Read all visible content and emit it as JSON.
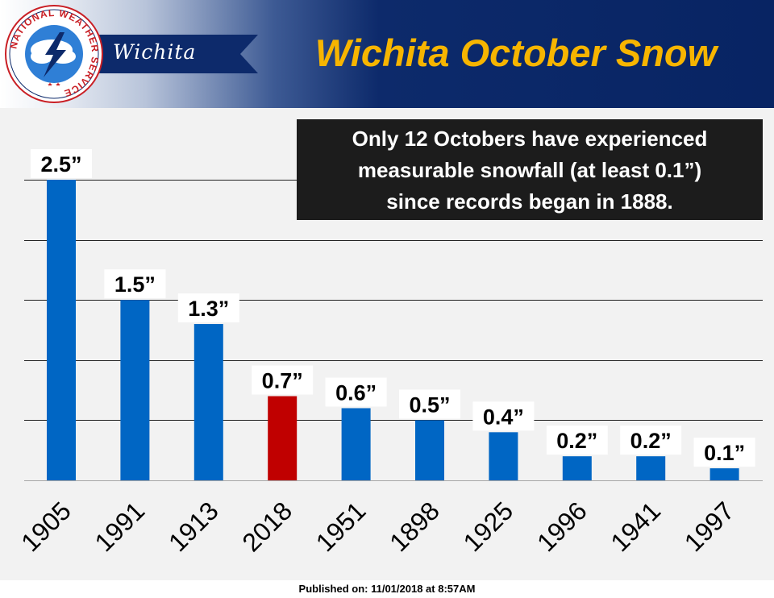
{
  "header": {
    "office": "Wichita",
    "title": "Wichita October Snow",
    "logo_text": "NATIONAL WEATHER SERVICE"
  },
  "annotation": [
    "Only 12 Octobers have experienced",
    "measurable snowfall (at least 0.1”)",
    "since records began in 1888."
  ],
  "footer": "Published on: 11/01/2018 at 8:57AM",
  "colors": {
    "bar": "#0066c4",
    "highlight": "#c00000",
    "title": "#f7b500",
    "header": "#082463"
  },
  "chart_data": {
    "type": "bar",
    "title": "Wichita October Snow",
    "xlabel": "",
    "ylabel": "",
    "ylim": [
      0,
      2.5
    ],
    "grid": true,
    "categories": [
      "1905",
      "1991",
      "1913",
      "2018",
      "1951",
      "1898",
      "1925",
      "1996",
      "1941",
      "1997"
    ],
    "values": [
      2.5,
      1.5,
      1.3,
      0.7,
      0.6,
      0.5,
      0.4,
      0.2,
      0.2,
      0.1
    ],
    "value_labels": [
      "2.5”",
      "1.5”",
      "1.3”",
      "0.7”",
      "0.6”",
      "0.5”",
      "0.4”",
      "0.2”",
      "0.2”",
      "0.1”"
    ],
    "highlight_category": "2018"
  }
}
